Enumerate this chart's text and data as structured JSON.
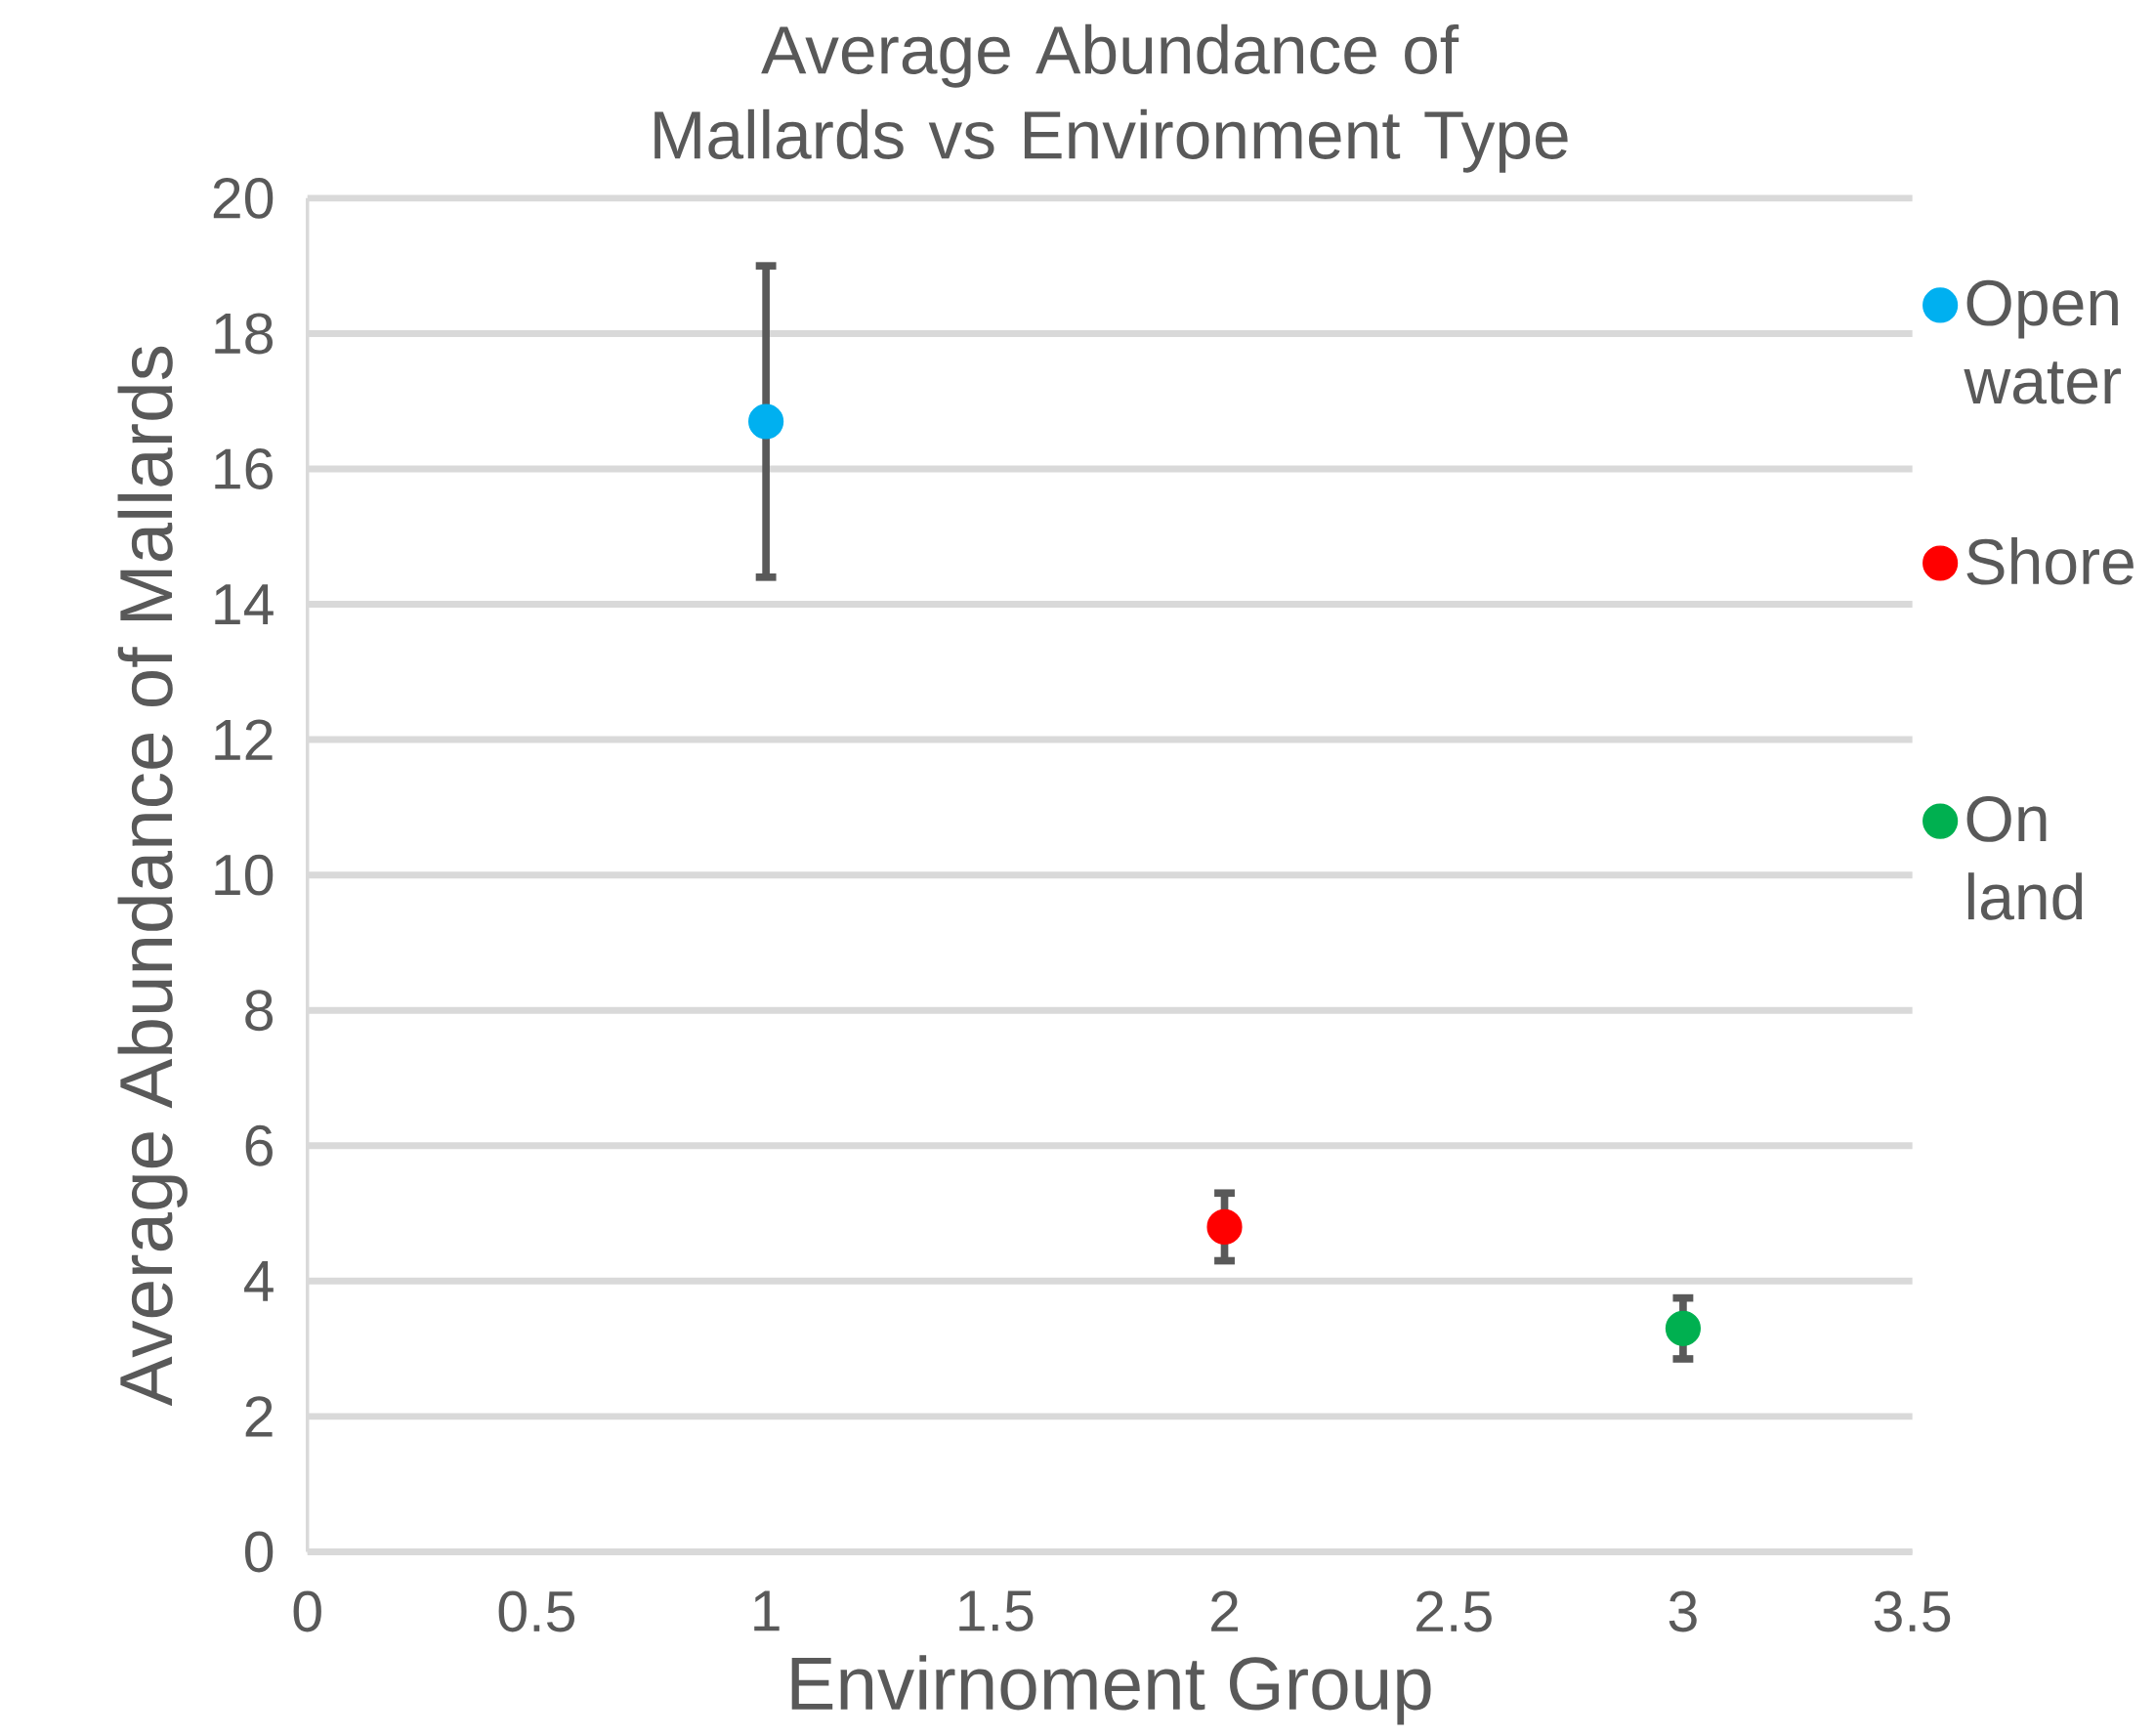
{
  "chart_data": {
    "type": "scatter",
    "title": "Average Abundance of Mallards vs Environment Type",
    "xlabel": "Envirnoment Group",
    "ylabel": "Average Abundance of Mallards",
    "xlim": [
      0,
      3.5
    ],
    "ylim": [
      0,
      20
    ],
    "xticks": [
      0,
      0.5,
      1,
      1.5,
      2,
      2.5,
      3,
      3.5
    ],
    "yticks": [
      0,
      2,
      4,
      6,
      8,
      10,
      12,
      14,
      16,
      18,
      20
    ],
    "grid": "y",
    "legend": "right",
    "marker": "circle",
    "series": [
      {
        "name": "Open water",
        "color": "#00b0f0",
        "x": [
          1
        ],
        "values": [
          16.7
        ],
        "errors": [
          2.3
        ]
      },
      {
        "name": "Shore",
        "color": "#ff0000",
        "x": [
          2
        ],
        "values": [
          4.8
        ],
        "errors": [
          0.5
        ]
      },
      {
        "name": "On land",
        "color": "#00b050",
        "x": [
          3
        ],
        "values": [
          3.3
        ],
        "errors": [
          0.45
        ]
      }
    ]
  }
}
